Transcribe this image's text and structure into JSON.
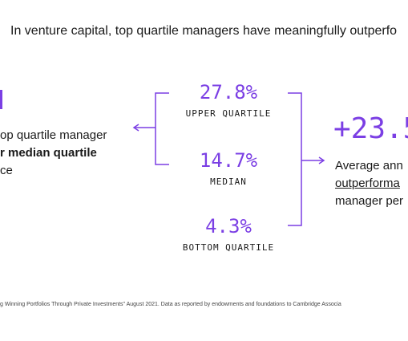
{
  "headline": "In venture capital, top quartile managers have meaningfully outperfo",
  "left": {
    "line1": "op quartile manager",
    "line2_bold": "r median quartile",
    "line3": "ce"
  },
  "stats": {
    "upper": {
      "value": "27.8%",
      "label": "UPPER QUARTILE"
    },
    "median": {
      "value": "14.7%",
      "label": "MEDIAN"
    },
    "bottom": {
      "value": "4.3%",
      "label": "BOTTOM QUARTILE"
    }
  },
  "right": {
    "value": "+23.5",
    "line1": "Average ann",
    "line2_underlined": "outperforma",
    "line3": "manager per"
  },
  "footnote": "g Winning Portfolios Through Private Investments\" August 2021. Data as reported by endowments and foundations to Cambridge Associa",
  "colors": {
    "accent": "#7b3fe4",
    "text": "#1a1a1a"
  }
}
